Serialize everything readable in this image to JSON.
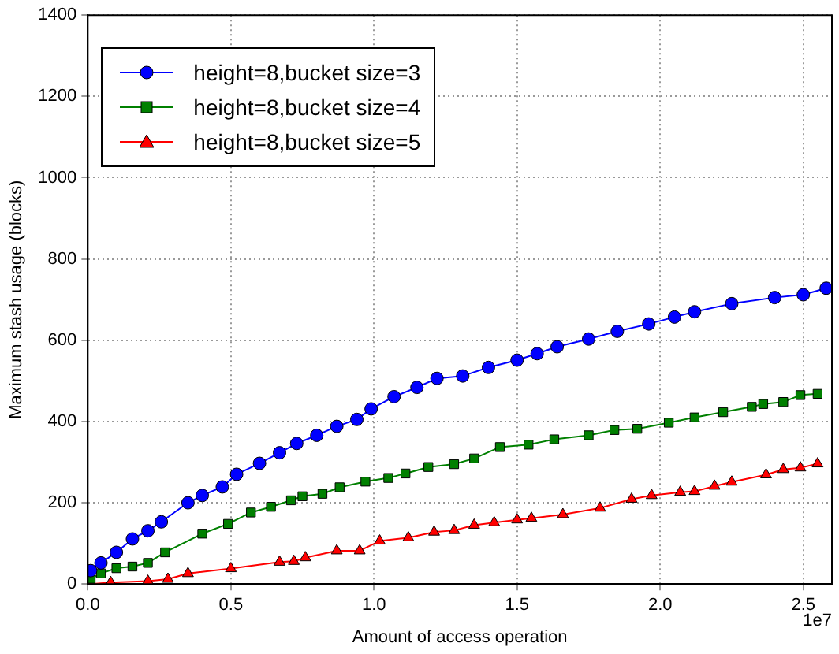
{
  "chart_data": {
    "type": "line",
    "xlabel": "Amount of access operation",
    "ylabel": "Maximum stash usage (blocks)",
    "xlim": [
      0,
      2.6
    ],
    "xticks": [
      {
        "value": 0,
        "label": "0.0"
      },
      0.5,
      {
        "value": 1,
        "label": "1.0"
      },
      1.5,
      {
        "value": 2,
        "label": "2.0"
      },
      2.5
    ],
    "ylim": [
      0,
      1400
    ],
    "yticks": [
      0,
      200,
      400,
      600,
      800,
      1000,
      1200,
      1400
    ],
    "grid": true,
    "legend": "top left",
    "annotations": [
      "1e7"
    ],
    "series": [
      {
        "name": "height=8,bucket size=3",
        "color": "#0000ff",
        "marker": "circle",
        "x": [
          0.01,
          0.046,
          0.1,
          0.156,
          0.21,
          0.257,
          0.35,
          0.4,
          0.47,
          0.52,
          0.6,
          0.67,
          0.73,
          0.8,
          0.87,
          0.94,
          0.99,
          1.07,
          1.15,
          1.22,
          1.31,
          1.4,
          1.5,
          1.57,
          1.64,
          1.75,
          1.85,
          1.96,
          2.05,
          2.12,
          2.25,
          2.4,
          2.5,
          2.58
        ],
        "values": [
          33,
          52,
          78,
          111,
          131,
          153,
          200,
          218,
          239,
          270,
          297,
          323,
          346,
          366,
          388,
          405,
          431,
          461,
          484,
          506,
          512,
          533,
          551,
          567,
          584,
          603,
          622,
          640,
          657,
          670,
          690,
          705,
          712,
          728
        ]
      },
      {
        "name": "height=8,bucket size=4",
        "color": "#008000",
        "marker": "square",
        "x": [
          0.01,
          0.046,
          0.1,
          0.156,
          0.21,
          0.27,
          0.4,
          0.49,
          0.57,
          0.64,
          0.71,
          0.75,
          0.82,
          0.88,
          0.97,
          1.05,
          1.11,
          1.19,
          1.28,
          1.35,
          1.44,
          1.54,
          1.63,
          1.75,
          1.84,
          1.92,
          2.03,
          2.12,
          2.22,
          2.32,
          2.36,
          2.43,
          2.49,
          2.55
        ],
        "values": [
          13,
          26,
          39,
          43,
          52,
          78,
          124,
          148,
          176,
          190,
          206,
          216,
          222,
          238,
          252,
          261,
          272,
          288,
          295,
          309,
          337,
          343,
          356,
          366,
          379,
          382,
          397,
          410,
          423,
          436,
          443,
          448,
          465,
          468
        ]
      },
      {
        "name": "height=8,bucket size=5",
        "color": "#ff0000",
        "marker": "triangle",
        "x": [
          0.01,
          0.08,
          0.21,
          0.28,
          0.35,
          0.5,
          0.67,
          0.72,
          0.76,
          0.87,
          0.95,
          1.02,
          1.12,
          1.21,
          1.28,
          1.35,
          1.42,
          1.5,
          1.55,
          1.66,
          1.79,
          1.9,
          1.97,
          2.07,
          2.12,
          2.19,
          2.25,
          2.37,
          2.43,
          2.49,
          2.55
        ],
        "values": [
          0,
          4,
          7,
          12,
          26,
          38,
          54,
          56,
          65,
          82,
          82,
          106,
          114,
          128,
          132,
          145,
          151,
          158,
          162,
          171,
          187,
          209,
          218,
          226,
          228,
          241,
          251,
          269,
          282,
          286,
          296
        ]
      }
    ]
  }
}
